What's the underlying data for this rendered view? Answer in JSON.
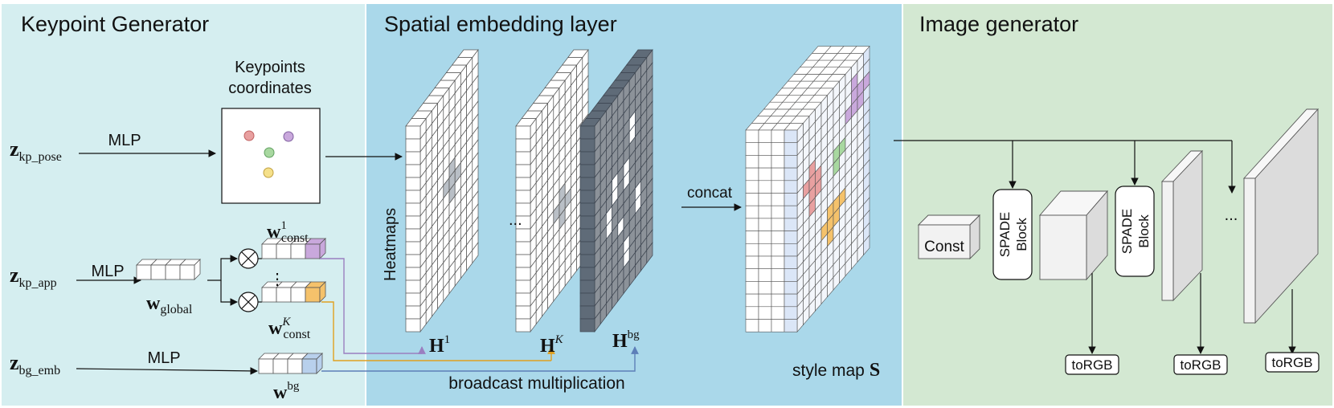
{
  "panels": {
    "keypoint_generator": "Keypoint Generator",
    "spatial_embedding": "Spatial embedding layer",
    "image_generator": "Image generator"
  },
  "keypoint": {
    "coords_label_line1": "Keypoints",
    "coords_label_line2": "coordinates",
    "z_pose": {
      "base": "z",
      "sub": "kp_pose"
    },
    "z_app": {
      "base": "z",
      "sub": "kp_app"
    },
    "z_bg": {
      "base": "z",
      "sub": "bg_emb"
    },
    "mlp": "MLP",
    "w_global": {
      "base": "w",
      "sub": "global"
    },
    "w_const_1": {
      "base": "w",
      "sup": "1",
      "sub": "const"
    },
    "w_const_k": {
      "base": "w",
      "sup": "K",
      "sub": "const"
    },
    "w_bg": {
      "base": "w",
      "sup": "bg"
    },
    "vdots": "⋮"
  },
  "spatial": {
    "heatmaps": "Heatmaps",
    "h1": {
      "base": "H",
      "sup": "1"
    },
    "hk": {
      "base": "H",
      "sup": "K"
    },
    "hbg": {
      "base": "H",
      "sup": "bg"
    },
    "dots": "...",
    "concat": "concat",
    "broadcast": "broadcast multiplication",
    "style_map": "style map",
    "style_map_symbol": "S"
  },
  "image_gen": {
    "const": "Const",
    "spade_line1": "SPADE",
    "spade_line2": "Block",
    "torgb": "toRGB",
    "dots": "..."
  },
  "colors": {
    "red": "#e8a0a0",
    "purple": "#c9a8dc",
    "green": "#a8d8a0",
    "yellow": "#f5e08a",
    "orange": "#f5c26b",
    "blue": "#b8d0ec",
    "dark_gray": "#5f6b78",
    "mid_gray": "#8c9299"
  }
}
